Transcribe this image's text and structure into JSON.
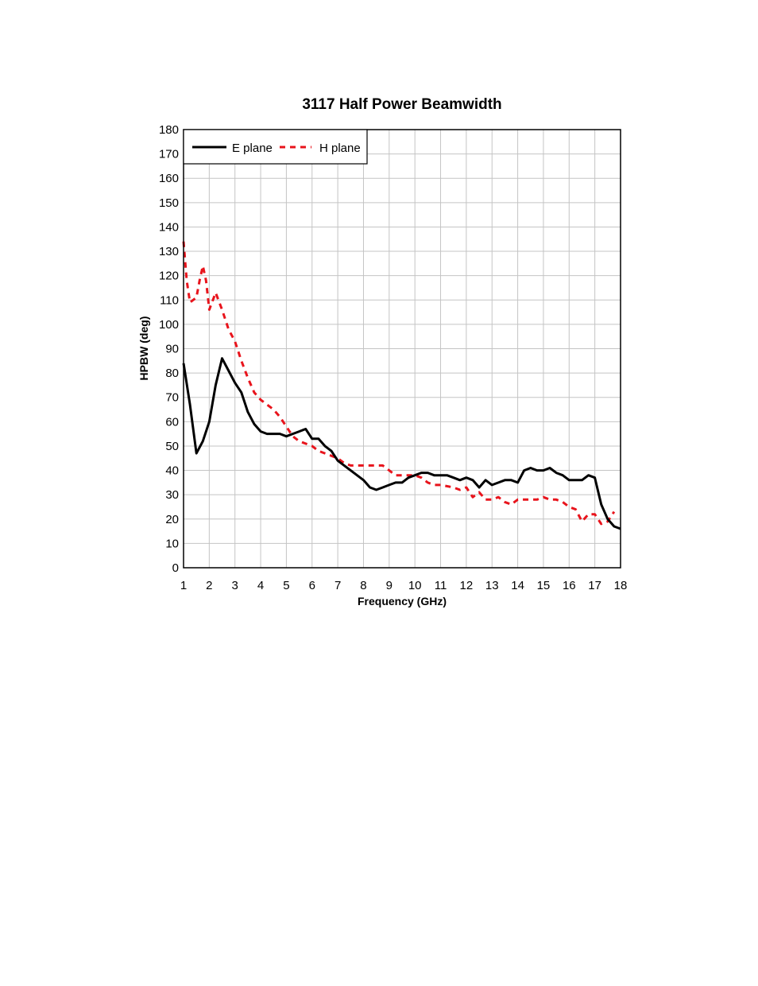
{
  "chart_data": {
    "type": "line",
    "title": "3117 Half Power Beamwidth",
    "xlabel": "Frequency (GHz)",
    "ylabel": "HPBW (deg)",
    "xlim": [
      1,
      18
    ],
    "ylim": [
      0,
      180
    ],
    "x_ticks": [
      "1",
      "2",
      "3",
      "4",
      "5",
      "6",
      "7",
      "8",
      "9",
      "10",
      "11",
      "12",
      "13",
      "14",
      "15",
      "16",
      "17",
      "18"
    ],
    "y_ticks": [
      "0",
      "10",
      "20",
      "30",
      "40",
      "50",
      "60",
      "70",
      "80",
      "90",
      "100",
      "110",
      "120",
      "130",
      "140",
      "150",
      "160",
      "170",
      "180"
    ],
    "grid": true,
    "legend": {
      "position": "top-left"
    },
    "series": [
      {
        "name": "E plane",
        "color": "#000000",
        "style": "solid",
        "points": [
          [
            1.0,
            84
          ],
          [
            1.25,
            67
          ],
          [
            1.5,
            47
          ],
          [
            1.75,
            52
          ],
          [
            2.0,
            60
          ],
          [
            2.25,
            75
          ],
          [
            2.5,
            86
          ],
          [
            2.75,
            81
          ],
          [
            3.0,
            76
          ],
          [
            3.25,
            72
          ],
          [
            3.5,
            64
          ],
          [
            3.75,
            59
          ],
          [
            4.0,
            56
          ],
          [
            4.25,
            55
          ],
          [
            4.5,
            55
          ],
          [
            4.75,
            55
          ],
          [
            5.0,
            54
          ],
          [
            5.25,
            55
          ],
          [
            5.5,
            56
          ],
          [
            5.75,
            57
          ],
          [
            6.0,
            53
          ],
          [
            6.25,
            53
          ],
          [
            6.5,
            50
          ],
          [
            6.75,
            48
          ],
          [
            7.0,
            44
          ],
          [
            7.25,
            42
          ],
          [
            7.5,
            40
          ],
          [
            7.75,
            38
          ],
          [
            8.0,
            36
          ],
          [
            8.25,
            33
          ],
          [
            8.5,
            32
          ],
          [
            8.75,
            33
          ],
          [
            9.0,
            34
          ],
          [
            9.25,
            35
          ],
          [
            9.5,
            35
          ],
          [
            9.75,
            37
          ],
          [
            10.0,
            38
          ],
          [
            10.25,
            39
          ],
          [
            10.5,
            39
          ],
          [
            10.75,
            38
          ],
          [
            11.0,
            38
          ],
          [
            11.25,
            38
          ],
          [
            11.5,
            37
          ],
          [
            11.75,
            36
          ],
          [
            12.0,
            37
          ],
          [
            12.25,
            36
          ],
          [
            12.5,
            33
          ],
          [
            12.75,
            36
          ],
          [
            13.0,
            34
          ],
          [
            13.25,
            35
          ],
          [
            13.5,
            36
          ],
          [
            13.75,
            36
          ],
          [
            14.0,
            35
          ],
          [
            14.25,
            40
          ],
          [
            14.5,
            41
          ],
          [
            14.75,
            40
          ],
          [
            15.0,
            40
          ],
          [
            15.25,
            41
          ],
          [
            15.5,
            39
          ],
          [
            15.75,
            38
          ],
          [
            16.0,
            36
          ],
          [
            16.25,
            36
          ],
          [
            16.5,
            36
          ],
          [
            16.75,
            38
          ],
          [
            17.0,
            37
          ],
          [
            17.25,
            26
          ],
          [
            17.5,
            20
          ],
          [
            17.75,
            17
          ],
          [
            18.0,
            16
          ]
        ]
      },
      {
        "name": "H plane",
        "color": "#e8141c",
        "style": "dashed",
        "points": [
          [
            1.0,
            134
          ],
          [
            1.125,
            118
          ],
          [
            1.25,
            109
          ],
          [
            1.5,
            111
          ],
          [
            1.625,
            118
          ],
          [
            1.75,
            124
          ],
          [
            1.875,
            118
          ],
          [
            2.0,
            106
          ],
          [
            2.25,
            113
          ],
          [
            2.5,
            106
          ],
          [
            2.75,
            98
          ],
          [
            3.0,
            93
          ],
          [
            3.25,
            85
          ],
          [
            3.5,
            78
          ],
          [
            3.75,
            72
          ],
          [
            4.0,
            69
          ],
          [
            4.25,
            67
          ],
          [
            4.5,
            65
          ],
          [
            4.75,
            62
          ],
          [
            5.0,
            58
          ],
          [
            5.25,
            54
          ],
          [
            5.5,
            52
          ],
          [
            5.75,
            51
          ],
          [
            6.0,
            50
          ],
          [
            6.25,
            48
          ],
          [
            6.5,
            47
          ],
          [
            7.0,
            45
          ],
          [
            7.25,
            43
          ],
          [
            7.5,
            42
          ],
          [
            8.0,
            42
          ],
          [
            8.5,
            42
          ],
          [
            8.75,
            42
          ],
          [
            9.0,
            40
          ],
          [
            9.25,
            38
          ],
          [
            9.5,
            38
          ],
          [
            9.75,
            38
          ],
          [
            10.0,
            38
          ],
          [
            10.25,
            37
          ],
          [
            10.5,
            35
          ],
          [
            10.75,
            34
          ],
          [
            11.0,
            34
          ],
          [
            11.5,
            33
          ],
          [
            11.75,
            32
          ],
          [
            12.0,
            33
          ],
          [
            12.25,
            29
          ],
          [
            12.5,
            31
          ],
          [
            12.75,
            28
          ],
          [
            13.0,
            28
          ],
          [
            13.25,
            29
          ],
          [
            13.5,
            27
          ],
          [
            13.75,
            26
          ],
          [
            14.0,
            28
          ],
          [
            14.5,
            28
          ],
          [
            14.75,
            28
          ],
          [
            15.0,
            29
          ],
          [
            15.25,
            28
          ],
          [
            15.5,
            28
          ],
          [
            15.75,
            27
          ],
          [
            16.0,
            25
          ],
          [
            16.25,
            24
          ],
          [
            16.5,
            19
          ],
          [
            16.75,
            22
          ],
          [
            17.0,
            22
          ],
          [
            17.25,
            18
          ],
          [
            17.5,
            19
          ],
          [
            17.75,
            23
          ]
        ]
      }
    ]
  }
}
